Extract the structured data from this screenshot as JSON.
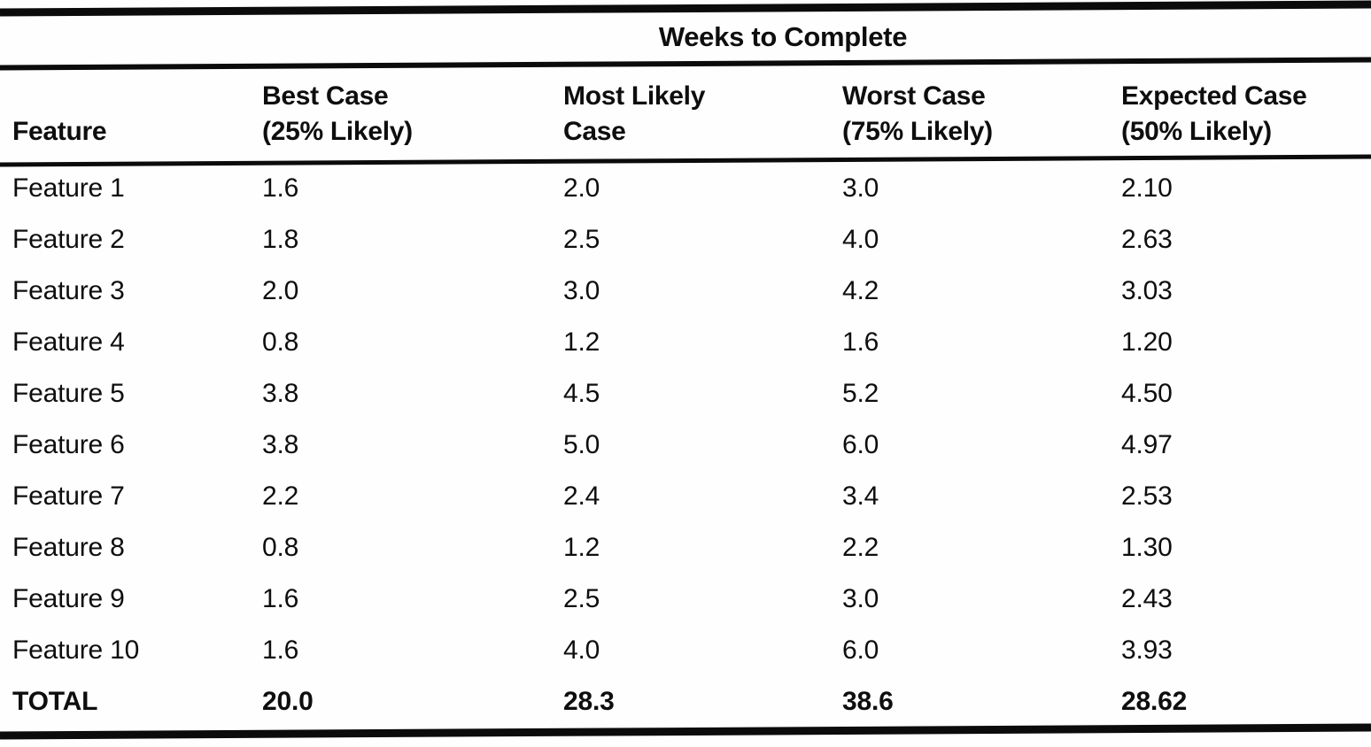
{
  "title": "Weeks to Complete",
  "header": {
    "feature": "Feature",
    "best_line1": "Best Case",
    "best_line2": "(25% Likely)",
    "most_likely_line1": "Most Likely",
    "most_likely_line2": "Case",
    "worst_line1": "Worst Case",
    "worst_line2": "(75% Likely)",
    "expected_line1": "Expected Case",
    "expected_line2": "(50% Likely)"
  },
  "rows": [
    {
      "feature": "Feature 1",
      "best": "1.6",
      "most_likely": "2.0",
      "worst": "3.0",
      "expected": "2.10"
    },
    {
      "feature": "Feature 2",
      "best": "1.8",
      "most_likely": "2.5",
      "worst": "4.0",
      "expected": "2.63"
    },
    {
      "feature": "Feature 3",
      "best": "2.0",
      "most_likely": "3.0",
      "worst": "4.2",
      "expected": "3.03"
    },
    {
      "feature": "Feature 4",
      "best": "0.8",
      "most_likely": "1.2",
      "worst": "1.6",
      "expected": "1.20"
    },
    {
      "feature": "Feature 5",
      "best": "3.8",
      "most_likely": "4.5",
      "worst": "5.2",
      "expected": "4.50"
    },
    {
      "feature": "Feature 6",
      "best": "3.8",
      "most_likely": "5.0",
      "worst": "6.0",
      "expected": "4.97"
    },
    {
      "feature": "Feature 7",
      "best": "2.2",
      "most_likely": "2.4",
      "worst": "3.4",
      "expected": "2.53"
    },
    {
      "feature": "Feature 8",
      "best": "0.8",
      "most_likely": "1.2",
      "worst": "2.2",
      "expected": "1.30"
    },
    {
      "feature": "Feature 9",
      "best": "1.6",
      "most_likely": "2.5",
      "worst": "3.0",
      "expected": "2.43"
    },
    {
      "feature": "Feature 10",
      "best": "1.6",
      "most_likely": "4.0",
      "worst": "6.0",
      "expected": "3.93"
    }
  ],
  "total": {
    "feature": "TOTAL",
    "best": "20.0",
    "most_likely": "28.3",
    "worst": "38.6",
    "expected": "28.62"
  },
  "colors": {
    "ink": "#0b0b0b",
    "paper": "#fefefe"
  },
  "chart_data": {
    "type": "table",
    "title": "Weeks to Complete",
    "categories": [
      "Feature 1",
      "Feature 2",
      "Feature 3",
      "Feature 4",
      "Feature 5",
      "Feature 6",
      "Feature 7",
      "Feature 8",
      "Feature 9",
      "Feature 10",
      "TOTAL"
    ],
    "series": [
      {
        "name": "Best Case (25% Likely)",
        "values": [
          1.6,
          1.8,
          2.0,
          0.8,
          3.8,
          3.8,
          2.2,
          0.8,
          1.6,
          1.6,
          20.0
        ]
      },
      {
        "name": "Most Likely Case",
        "values": [
          2.0,
          2.5,
          3.0,
          1.2,
          4.5,
          5.0,
          2.4,
          1.2,
          2.5,
          4.0,
          28.3
        ]
      },
      {
        "name": "Worst Case (75% Likely)",
        "values": [
          3.0,
          4.0,
          4.2,
          1.6,
          5.2,
          6.0,
          3.4,
          2.2,
          3.0,
          6.0,
          38.6
        ]
      },
      {
        "name": "Expected Case (50% Likely)",
        "values": [
          2.1,
          2.63,
          3.03,
          1.2,
          4.5,
          4.97,
          2.53,
          1.3,
          2.43,
          3.93,
          28.62
        ]
      }
    ]
  }
}
